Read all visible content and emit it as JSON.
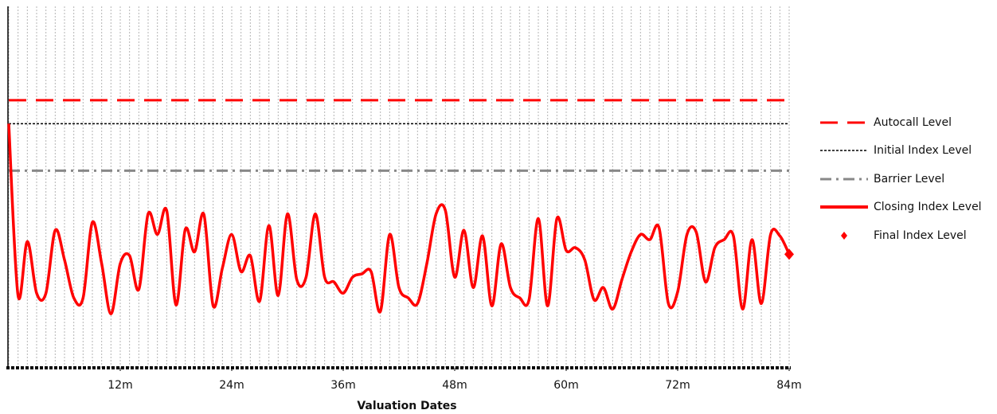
{
  "chart_data": {
    "type": "line",
    "x_label": "Valuation Dates",
    "xlim": [
      0,
      84
    ],
    "ylim": [
      48,
      125
    ],
    "xticks": [
      {
        "value": 12,
        "label": "12m"
      },
      {
        "value": 24,
        "label": "24m"
      },
      {
        "value": 36,
        "label": "36m"
      },
      {
        "value": 48,
        "label": "48m"
      },
      {
        "value": 60,
        "label": "60m"
      },
      {
        "value": 72,
        "label": "72m"
      },
      {
        "value": 84,
        "label": "84m"
      }
    ],
    "grid": true,
    "legend": "right",
    "x": [
      0,
      1,
      2,
      3,
      4,
      5,
      6,
      7,
      8,
      9,
      10,
      11,
      12,
      13,
      14,
      15,
      16,
      17,
      18,
      19,
      20,
      21,
      22,
      23,
      24,
      25,
      26,
      27,
      28,
      29,
      30,
      31,
      32,
      33,
      34,
      35,
      36,
      37,
      38,
      39,
      40,
      41,
      42,
      43,
      44,
      45,
      46,
      47,
      48,
      49,
      50,
      51,
      52,
      53,
      54,
      55,
      56,
      57,
      58,
      59,
      60,
      61,
      62,
      63,
      64,
      65,
      66,
      67,
      68,
      69,
      70,
      71,
      72,
      73,
      74,
      75,
      76,
      77,
      78,
      79,
      80,
      81,
      82,
      83,
      84
    ],
    "levels": [
      {
        "name": "Autocall Level",
        "color": "#ff0000",
        "style": "dashed",
        "value": 105
      },
      {
        "name": "Initial Index Level",
        "color": "#000000",
        "style": "dotted",
        "value": 100
      },
      {
        "name": "Barrier Level",
        "color": "#888888",
        "style": "dashdot",
        "value": 90
      }
    ],
    "series": [
      {
        "name": "Closing Index Level",
        "color": "#ff0000",
        "values": [
          100,
          63.4,
          74.9,
          63.9,
          63.9,
          77.3,
          71,
          62.9,
          62.9,
          79,
          70.2,
          59.5,
          70.2,
          71.9,
          64.7,
          80.8,
          76.4,
          81.5,
          61.4,
          77.5,
          72.7,
          80.7,
          61.2,
          69.3,
          76.4,
          68.5,
          71.9,
          62.2,
          78.3,
          63.4,
          80.8,
          66.8,
          67.3,
          80.8,
          67.3,
          66.3,
          63.9,
          67.3,
          68,
          68.5,
          60,
          76.4,
          65.1,
          62.9,
          61.7,
          70.2,
          80.8,
          81.5,
          67.3,
          77.3,
          65.1,
          76.1,
          61.2,
          74.4,
          65.1,
          62.9,
          62.5,
          79.8,
          61.2,
          79.8,
          73,
          73.6,
          71,
          62.5,
          65.1,
          60.5,
          66.8,
          72.7,
          76.4,
          75.3,
          77.8,
          61.7,
          64.2,
          76.4,
          76.9,
          66.3,
          73.6,
          75.3,
          76.1,
          60.5,
          75.3,
          61.7,
          76.4,
          76.1,
          72.2
        ]
      }
    ],
    "final": {
      "name": "Final Index Level",
      "color": "#ff0000",
      "x": 84,
      "value": 72.2
    }
  }
}
